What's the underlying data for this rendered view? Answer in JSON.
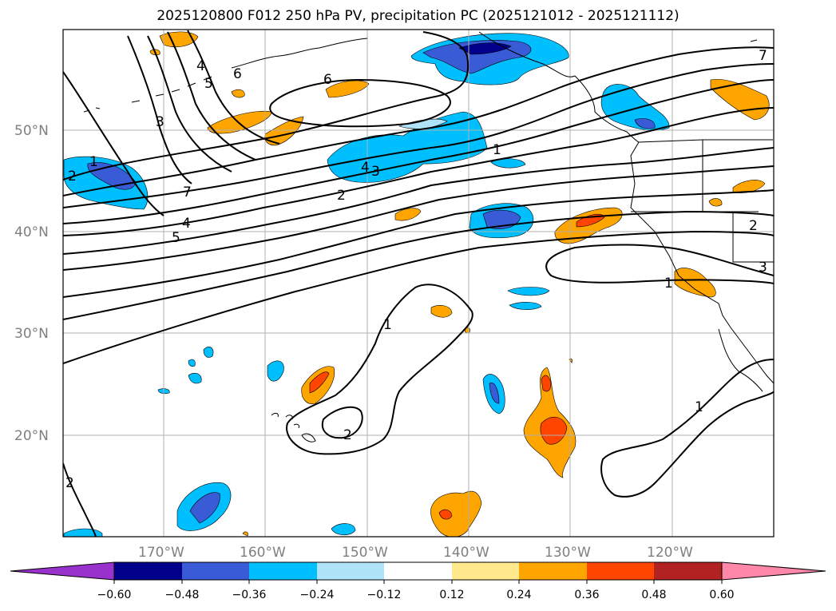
{
  "title": "2025120800 F012 250 hPa PV, precipitation PC (2025121012 - 2025121112)",
  "lat_labels": [
    "50°N",
    "40°N",
    "30°N",
    "20°N"
  ],
  "lon_labels": [
    "170°W",
    "160°W",
    "150°W",
    "140°W",
    "130°W",
    "120°W"
  ],
  "contour_labels": [
    "1",
    "2",
    "3",
    "4",
    "5",
    "6",
    "7",
    "6",
    "5",
    "4",
    "3",
    "2",
    "1",
    "1",
    "2",
    "3",
    "4",
    "1",
    "2",
    "1",
    "2",
    "3",
    "1",
    "1",
    "6",
    "7"
  ],
  "colorbar": {
    "ticks": [
      "−0.60",
      "−0.48",
      "−0.36",
      "−0.24",
      "−0.12",
      "0.12",
      "0.24",
      "0.36",
      "0.48",
      "0.60"
    ],
    "colors": [
      "#9932cc",
      "#00008b",
      "#3a5bd6",
      "#00bfff",
      "#aee3fa",
      "#ffffff",
      "#ffe98c",
      "#ffa500",
      "#ff4500",
      "#b22222",
      "#ff88aa"
    ]
  },
  "colors": {
    "blue_dark": "#00008b",
    "blue_mid": "#3a5bd6",
    "blue_light": "#00bfff",
    "orange": "#ffa500",
    "red": "#ff4500",
    "grid": "#b0b0b0"
  }
}
